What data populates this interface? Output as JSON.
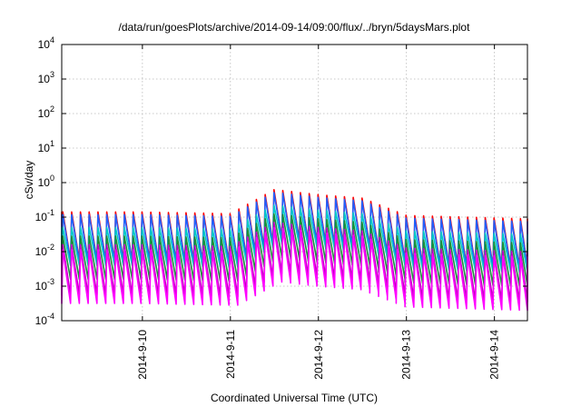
{
  "chart_data": {
    "type": "line",
    "title": "/data/run/goesPlots/archive/2014-09-14/09:00/flux/../bryn/5daysMars.plot",
    "xlabel": "Coordinated Universal Time (UTC)",
    "ylabel": "cSv/day",
    "y_scale": "log",
    "ylim_exponents": [
      -4,
      4
    ],
    "y_ticks": [
      {
        "base": "10",
        "exp": "4"
      },
      {
        "base": "10",
        "exp": "3"
      },
      {
        "base": "10",
        "exp": "2"
      },
      {
        "base": "10",
        "exp": "1"
      },
      {
        "base": "10",
        "exp": "0"
      },
      {
        "base": "10",
        "exp": "-1"
      },
      {
        "base": "10",
        "exp": "-2"
      },
      {
        "base": "10",
        "exp": "-3"
      },
      {
        "base": "10",
        "exp": "-4"
      }
    ],
    "x_range_days": [
      "2014-09-09 02:00",
      "2014-09-14 09:00"
    ],
    "x_ticks": [
      "2014-9-10",
      "2014-9-11",
      "2014-9-12",
      "2014-9-13",
      "2014-9-14"
    ],
    "grid": true,
    "legend": "none",
    "sawtooth_cycles_per_day": 10,
    "envelope": {
      "day_start": [
        "2014-09-09",
        "2014-09-10",
        "2014-09-11",
        "2014-09-11 12:00",
        "2014-09-12",
        "2014-09-12 12:00",
        "2014-09-13",
        "2014-09-14 09:00"
      ],
      "peak_log10": [
        -0.85,
        -0.85,
        -0.9,
        -0.2,
        -0.35,
        -0.45,
        -0.95,
        -1.05
      ]
    },
    "series": [
      {
        "color": "#ff0000",
        "offset": 0.0,
        "drop": 1.4
      },
      {
        "color": "#2060ff",
        "offset": -0.08,
        "drop": 1.35
      },
      {
        "color": "#00c8c8",
        "offset": -0.45,
        "drop": 1.1
      },
      {
        "color": "#1a8f3a",
        "offset": -0.7,
        "drop": 1.25
      },
      {
        "color": "#c000c0",
        "offset": -0.95,
        "drop": 1.45
      },
      {
        "color": "#ff00ff",
        "offset": -1.1,
        "drop": 1.55
      }
    ]
  }
}
